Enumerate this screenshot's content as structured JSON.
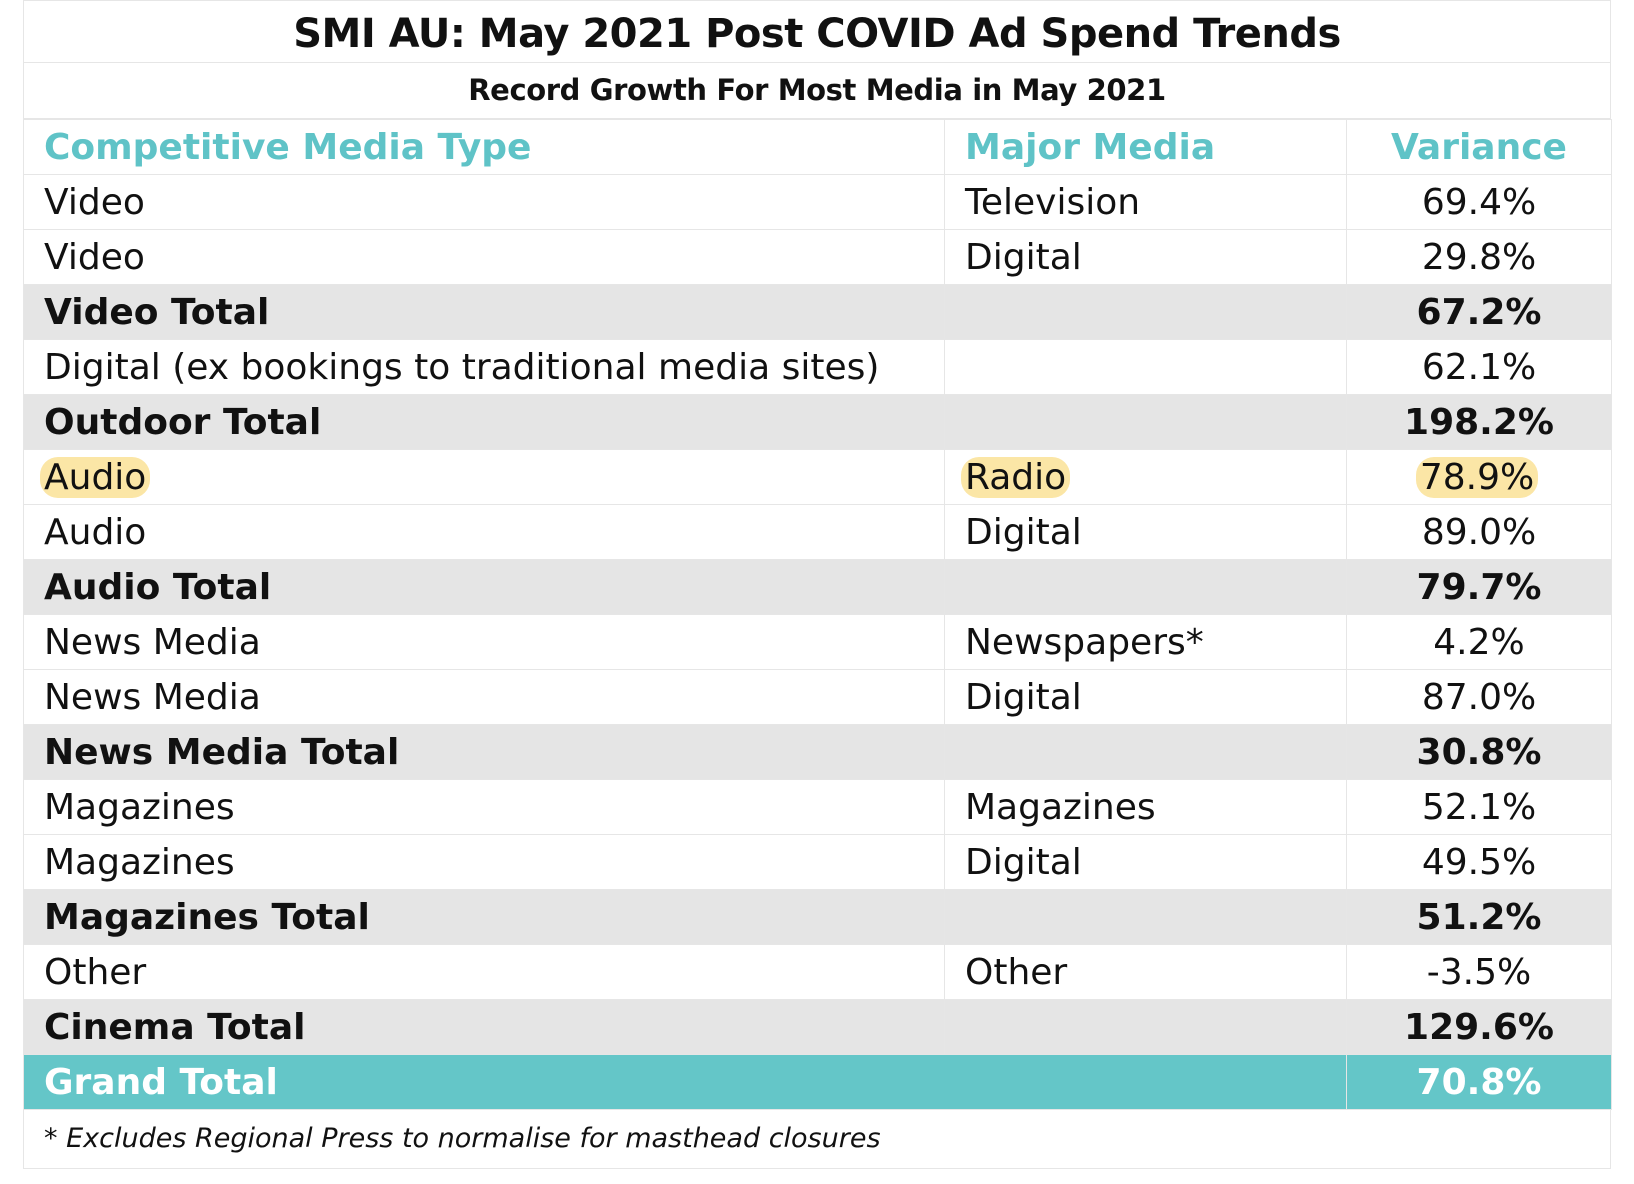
{
  "title": "SMI AU: May 2021 Post COVID Ad Spend Trends",
  "subtitle": "Record Growth For Most Media in May 2021",
  "colors": {
    "header_text": "#5fc3c7",
    "total_row_bg": "#e5e5e5",
    "grand_total_bg": "#64c6c8",
    "highlight": "#fbe6a6"
  },
  "chart_data": {
    "type": "table",
    "title": "SMI AU: May 2021 Post COVID Ad Spend Trends",
    "subtitle": "Record Growth For Most Media in May 2021",
    "columns": [
      "Competitive Media Type",
      "Major Media",
      "Variance"
    ],
    "rows": [
      {
        "type": "Video",
        "media": "Television",
        "variance": "69.4%",
        "style": "normal"
      },
      {
        "type": "Video",
        "media": "Digital",
        "variance": "29.8%",
        "style": "normal"
      },
      {
        "type": "Video Total",
        "media": "",
        "variance": "67.2%",
        "style": "total"
      },
      {
        "type": "Digital (ex bookings to traditional media sites)",
        "media": "",
        "variance": "62.1%",
        "style": "normal"
      },
      {
        "type": "Outdoor Total",
        "media": "",
        "variance": "198.2%",
        "style": "total"
      },
      {
        "type": "Audio",
        "media": "Radio",
        "variance": "78.9%",
        "style": "highlight"
      },
      {
        "type": "Audio",
        "media": "Digital",
        "variance": "89.0%",
        "style": "normal"
      },
      {
        "type": "Audio Total",
        "media": "",
        "variance": "79.7%",
        "style": "total"
      },
      {
        "type": "News Media",
        "media": "Newspapers*",
        "variance": "4.2%",
        "style": "normal"
      },
      {
        "type": "News Media",
        "media": "Digital",
        "variance": "87.0%",
        "style": "normal"
      },
      {
        "type": "News Media Total",
        "media": "",
        "variance": "30.8%",
        "style": "total"
      },
      {
        "type": "Magazines",
        "media": "Magazines",
        "variance": "52.1%",
        "style": "normal"
      },
      {
        "type": "Magazines",
        "media": "Digital",
        "variance": "49.5%",
        "style": "normal"
      },
      {
        "type": "Magazines Total",
        "media": "",
        "variance": "51.2%",
        "style": "total"
      },
      {
        "type": "Other",
        "media": "Other",
        "variance": "-3.5%",
        "style": "normal"
      },
      {
        "type": "Cinema Total",
        "media": "",
        "variance": "129.6%",
        "style": "total"
      },
      {
        "type": "Grand Total",
        "media": "",
        "variance": "70.8%",
        "style": "grand"
      }
    ],
    "footnote": "* Excludes Regional Press to normalise for masthead closures"
  }
}
